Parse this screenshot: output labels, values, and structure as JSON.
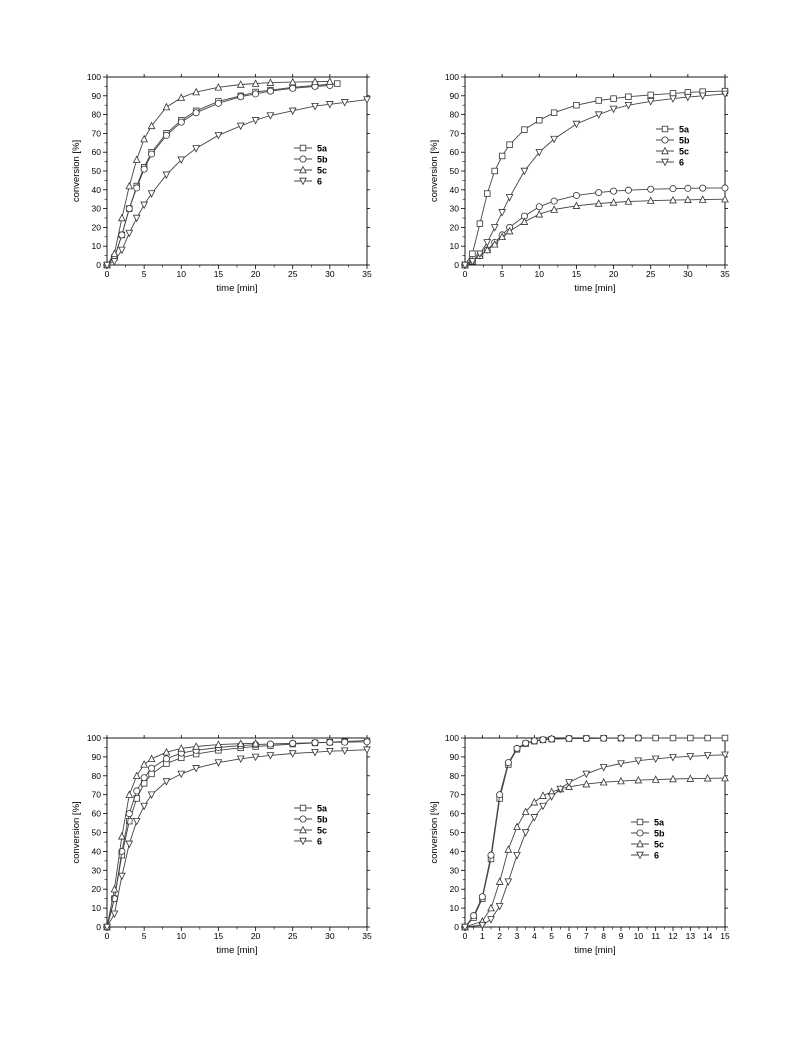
{
  "chart_data": [
    {
      "type": "scatter",
      "xlabel": "time [min]",
      "ylabel": "conversion [%]",
      "xlim": [
        0,
        35
      ],
      "ylim": [
        0,
        100
      ],
      "xticks": [
        0,
        5,
        10,
        15,
        20,
        25,
        30,
        35
      ],
      "yticks": [
        0,
        10,
        20,
        30,
        40,
        50,
        60,
        70,
        80,
        90,
        100
      ],
      "legend_position": "center-right",
      "grid": false,
      "series": [
        {
          "name": "5a",
          "marker": "square",
          "x": [
            0,
            1,
            2,
            3,
            4,
            5,
            6,
            8,
            10,
            12,
            15,
            18,
            20,
            22,
            25,
            28,
            31
          ],
          "y": [
            0,
            4,
            16,
            30,
            42,
            52,
            60,
            70,
            77,
            82,
            87,
            90,
            92,
            93,
            94.5,
            95.5,
            96.5
          ]
        },
        {
          "name": "5b",
          "marker": "circle",
          "x": [
            0,
            1,
            2,
            3,
            4,
            5,
            6,
            8,
            10,
            12,
            15,
            18,
            20,
            22,
            25,
            28,
            30
          ],
          "y": [
            0,
            4,
            16,
            30,
            41,
            51,
            59,
            69,
            76,
            81,
            86,
            89.5,
            91,
            92.5,
            94,
            95,
            95.5
          ]
        },
        {
          "name": "5c",
          "marker": "triangle-up",
          "x": [
            0,
            1,
            2,
            3,
            4,
            5,
            6,
            8,
            10,
            12,
            15,
            18,
            20,
            22,
            25,
            28,
            30
          ],
          "y": [
            0,
            6,
            25,
            42,
            56,
            67,
            74,
            84,
            89,
            92,
            94.5,
            96,
            96.5,
            97,
            97.3,
            97.5,
            97.6
          ]
        },
        {
          "name": "6",
          "marker": "triangle-down",
          "x": [
            0,
            1,
            2,
            3,
            4,
            5,
            6,
            8,
            10,
            12,
            15,
            18,
            20,
            22,
            25,
            28,
            30,
            32,
            35
          ],
          "y": [
            0,
            2,
            8,
            17,
            25,
            32,
            38,
            48,
            56,
            62,
            69,
            74,
            77,
            79.5,
            82,
            84.5,
            85.5,
            86.5,
            88
          ]
        }
      ]
    },
    {
      "type": "scatter",
      "xlabel": "time [min]",
      "ylabel": "conversion [%]",
      "xlim": [
        0,
        35
      ],
      "ylim": [
        0,
        100
      ],
      "xticks": [
        0,
        5,
        10,
        15,
        20,
        25,
        30,
        35
      ],
      "yticks": [
        0,
        10,
        20,
        30,
        40,
        50,
        60,
        70,
        80,
        90,
        100
      ],
      "legend_position": "top-right",
      "grid": false,
      "series": [
        {
          "name": "5a",
          "marker": "square",
          "x": [
            0,
            1,
            2,
            3,
            4,
            5,
            6,
            8,
            10,
            12,
            15,
            18,
            20,
            22,
            25,
            28,
            30,
            32,
            35
          ],
          "y": [
            0,
            6,
            22,
            38,
            50,
            58,
            64,
            72,
            77,
            81,
            85,
            87.5,
            88.5,
            89.5,
            90.5,
            91.3,
            91.8,
            92.2,
            92.5
          ]
        },
        {
          "name": "5b",
          "marker": "circle",
          "x": [
            0,
            1,
            2,
            3,
            4,
            5,
            6,
            8,
            10,
            12,
            15,
            18,
            20,
            22,
            25,
            28,
            30,
            32,
            35
          ],
          "y": [
            0,
            2,
            5,
            8,
            12,
            16,
            20,
            26,
            31,
            34,
            37,
            38.5,
            39.3,
            39.8,
            40.3,
            40.6,
            40.8,
            40.9,
            41
          ]
        },
        {
          "name": "5c",
          "marker": "triangle-up",
          "x": [
            0,
            1,
            2,
            3,
            4,
            5,
            6,
            8,
            10,
            12,
            15,
            18,
            20,
            22,
            25,
            28,
            30,
            32,
            35
          ],
          "y": [
            0,
            2,
            5,
            8,
            11,
            15,
            18,
            23,
            27,
            29.5,
            31.5,
            32.7,
            33.3,
            33.8,
            34.2,
            34.5,
            34.7,
            34.8,
            35
          ]
        },
        {
          "name": "6",
          "marker": "triangle-down",
          "x": [
            0,
            1,
            2,
            3,
            4,
            5,
            6,
            8,
            10,
            12,
            15,
            18,
            20,
            22,
            25,
            28,
            30,
            32,
            35
          ],
          "y": [
            0,
            2,
            6,
            12,
            20,
            28,
            36,
            50,
            60,
            67,
            75,
            80,
            83,
            85,
            87,
            88.5,
            89.3,
            90,
            91
          ]
        }
      ]
    },
    {
      "type": "scatter",
      "xlabel": "time [min]",
      "ylabel": "conversion [%]",
      "xlim": [
        0,
        35
      ],
      "ylim": [
        0,
        100
      ],
      "xticks": [
        0,
        5,
        10,
        15,
        20,
        25,
        30,
        35
      ],
      "yticks": [
        0,
        10,
        20,
        30,
        40,
        50,
        60,
        70,
        80,
        90,
        100
      ],
      "legend_position": "center-right",
      "grid": false,
      "series": [
        {
          "name": "5a",
          "marker": "square",
          "x": [
            0,
            1,
            2,
            3,
            4,
            5,
            6,
            8,
            10,
            12,
            15,
            18,
            20,
            22,
            25,
            28,
            30,
            32,
            35
          ],
          "y": [
            0,
            15,
            38,
            56,
            68,
            76,
            81,
            86.5,
            89.5,
            91.5,
            93.5,
            94.8,
            95.5,
            96,
            96.8,
            97.4,
            97.8,
            98.2,
            98.6
          ]
        },
        {
          "name": "5b",
          "marker": "circle",
          "x": [
            0,
            1,
            2,
            3,
            4,
            5,
            6,
            8,
            10,
            12,
            15,
            18,
            20,
            22,
            25,
            28,
            30,
            32,
            35
          ],
          "y": [
            0,
            15,
            40,
            60,
            72,
            79,
            84,
            89,
            92,
            93.5,
            95,
            96,
            96.5,
            96.8,
            97.2,
            97.5,
            97.7,
            97.8,
            98
          ]
        },
        {
          "name": "5c",
          "marker": "triangle-up",
          "x": [
            0,
            1,
            2,
            3,
            4,
            5,
            6,
            8,
            10,
            12,
            15,
            18,
            20
          ],
          "y": [
            0,
            20,
            48,
            70,
            80,
            86,
            89,
            92.5,
            94.5,
            95.5,
            96.5,
            97,
            97.2
          ]
        },
        {
          "name": "6",
          "marker": "triangle-down",
          "x": [
            0,
            1,
            2,
            3,
            4,
            5,
            6,
            8,
            10,
            12,
            15,
            18,
            20,
            22,
            25,
            28,
            30,
            32,
            35
          ],
          "y": [
            0,
            7,
            27,
            44,
            56,
            64,
            70,
            77,
            81,
            84,
            87,
            89,
            90,
            90.8,
            91.8,
            92.5,
            93,
            93.3,
            93.8
          ]
        }
      ]
    },
    {
      "type": "scatter",
      "xlabel": "time [min]",
      "ylabel": "conversion [%]",
      "xlim": [
        0,
        15
      ],
      "ylim": [
        0,
        100
      ],
      "xticks": [
        0,
        1,
        2,
        3,
        4,
        5,
        6,
        7,
        8,
        9,
        10,
        11,
        12,
        13,
        14,
        15
      ],
      "yticks": [
        0,
        10,
        20,
        30,
        40,
        50,
        60,
        70,
        80,
        90,
        100
      ],
      "legend_position": "center-right",
      "grid": false,
      "series": [
        {
          "name": "5a",
          "marker": "square",
          "x": [
            0,
            0.5,
            1,
            1.5,
            2,
            2.5,
            3,
            3.5,
            4,
            4.5,
            5,
            6,
            7,
            8,
            9,
            10,
            11,
            12,
            13,
            14,
            15
          ],
          "y": [
            0,
            5,
            15,
            36,
            68,
            86,
            94,
            97,
            98.3,
            99,
            99.4,
            99.7,
            99.8,
            99.9,
            99.9,
            100,
            100,
            100,
            100,
            100,
            100
          ]
        },
        {
          "name": "5b",
          "marker": "circle",
          "x": [
            0,
            0.5,
            1,
            1.5,
            2,
            2.5,
            3,
            3.5,
            4,
            4.5,
            5,
            6,
            7,
            8,
            9,
            10
          ],
          "y": [
            0,
            6,
            16,
            38,
            70,
            87,
            94.5,
            97.3,
            98.5,
            99.1,
            99.5,
            99.7,
            99.8,
            99.9,
            100,
            100
          ]
        },
        {
          "name": "5c",
          "marker": "triangle-up",
          "x": [
            0,
            1,
            1.5,
            2,
            2.5,
            3,
            3.5,
            4,
            4.5,
            5,
            5.5,
            6,
            7,
            8,
            9,
            10,
            11,
            12,
            13,
            14,
            15
          ],
          "y": [
            0,
            3,
            10,
            24,
            41,
            53,
            61,
            66,
            69.5,
            71.5,
            73,
            74.2,
            75.6,
            76.6,
            77.2,
            77.7,
            78,
            78.3,
            78.5,
            78.7,
            78.8
          ]
        },
        {
          "name": "6",
          "marker": "triangle-down",
          "x": [
            0,
            1,
            1.5,
            2,
            2.5,
            3,
            3.5,
            4,
            4.5,
            5,
            5.5,
            6,
            7,
            8,
            9,
            10,
            11,
            12,
            13,
            14,
            15
          ],
          "y": [
            0,
            1,
            4,
            11,
            24,
            38,
            50,
            58,
            64,
            69,
            73,
            76.5,
            81,
            84.5,
            86.5,
            88,
            89,
            89.8,
            90.3,
            90.8,
            91.1
          ]
        }
      ]
    }
  ]
}
